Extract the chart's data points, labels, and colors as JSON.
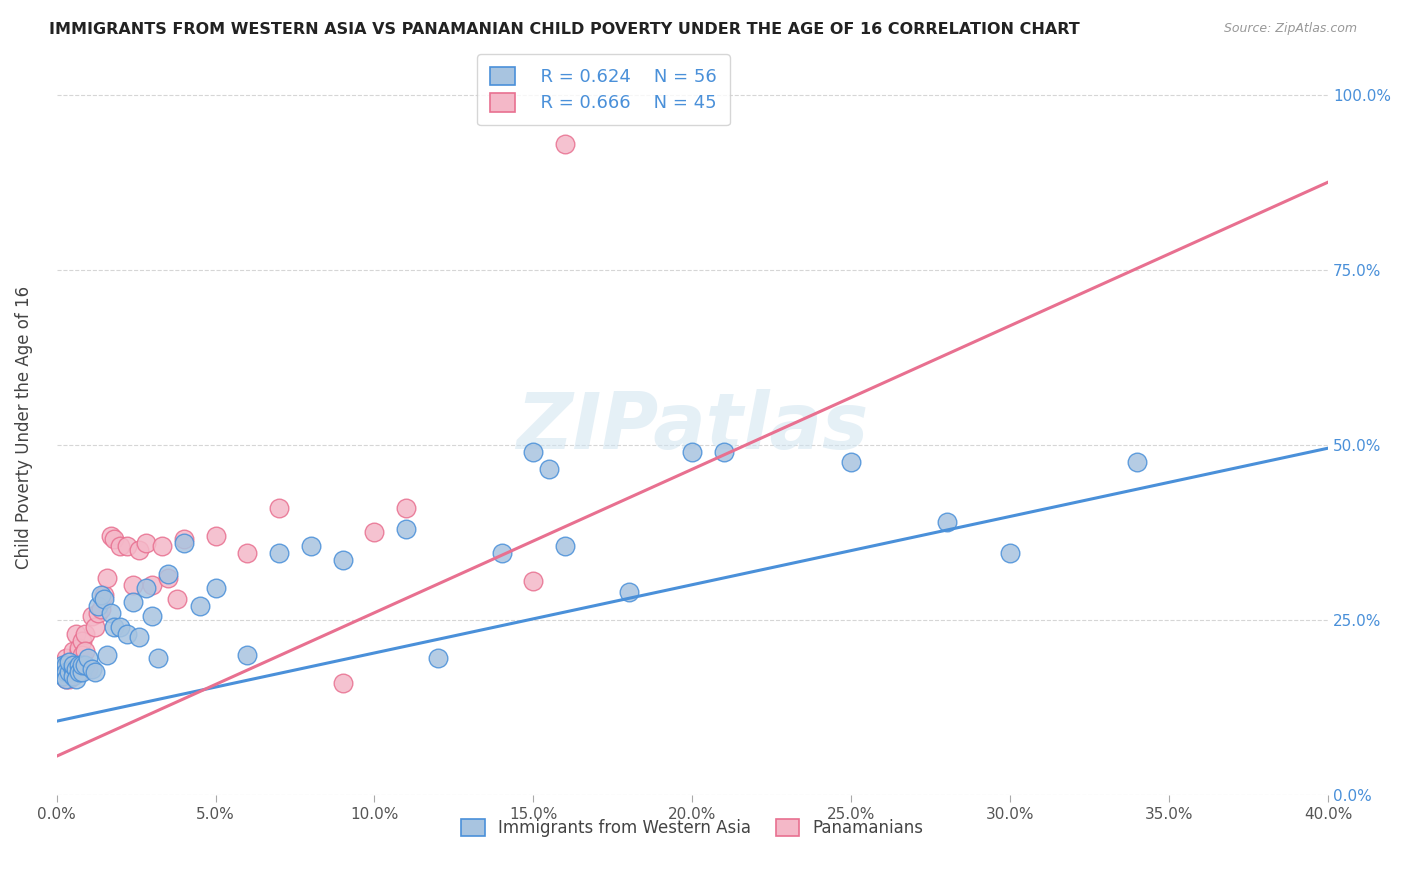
{
  "title": "IMMIGRANTS FROM WESTERN ASIA VS PANAMANIAN CHILD POVERTY UNDER THE AGE OF 16 CORRELATION CHART",
  "source": "Source: ZipAtlas.com",
  "ylabel": "Child Poverty Under the Age of 16",
  "legend_label_blue": "Immigrants from Western Asia",
  "legend_label_pink": "Panamanians",
  "legend_r_blue": "R = 0.624",
  "legend_n_blue": "N = 56",
  "legend_r_pink": "R = 0.666",
  "legend_n_pink": "N = 45",
  "xlim": [
    0.0,
    0.4
  ],
  "ylim": [
    0.0,
    1.05
  ],
  "xticks": [
    0.0,
    0.05,
    0.1,
    0.15,
    0.2,
    0.25,
    0.3,
    0.35,
    0.4
  ],
  "yticks": [
    0.0,
    0.25,
    0.5,
    0.75,
    1.0
  ],
  "color_blue": "#a8c4e0",
  "color_blue_line": "#4a90d9",
  "color_pink": "#f4b8c8",
  "color_pink_line": "#e87090",
  "watermark": "ZIPatlas",
  "blue_scatter_x": [
    0.001,
    0.001,
    0.002,
    0.002,
    0.003,
    0.003,
    0.003,
    0.004,
    0.004,
    0.005,
    0.005,
    0.005,
    0.006,
    0.006,
    0.007,
    0.007,
    0.008,
    0.008,
    0.009,
    0.01,
    0.011,
    0.012,
    0.013,
    0.014,
    0.015,
    0.016,
    0.017,
    0.018,
    0.02,
    0.022,
    0.024,
    0.026,
    0.028,
    0.03,
    0.032,
    0.035,
    0.04,
    0.045,
    0.05,
    0.06,
    0.07,
    0.08,
    0.09,
    0.11,
    0.12,
    0.14,
    0.15,
    0.155,
    0.16,
    0.18,
    0.2,
    0.21,
    0.25,
    0.28,
    0.3,
    0.34
  ],
  "blue_scatter_y": [
    0.18,
    0.175,
    0.185,
    0.17,
    0.185,
    0.175,
    0.165,
    0.175,
    0.19,
    0.18,
    0.17,
    0.185,
    0.18,
    0.165,
    0.185,
    0.175,
    0.175,
    0.185,
    0.185,
    0.195,
    0.18,
    0.175,
    0.27,
    0.285,
    0.28,
    0.2,
    0.26,
    0.24,
    0.24,
    0.23,
    0.275,
    0.225,
    0.295,
    0.255,
    0.195,
    0.315,
    0.36,
    0.27,
    0.295,
    0.2,
    0.345,
    0.355,
    0.335,
    0.38,
    0.195,
    0.345,
    0.49,
    0.465,
    0.355,
    0.29,
    0.49,
    0.49,
    0.475,
    0.39,
    0.345,
    0.475
  ],
  "pink_scatter_x": [
    0.001,
    0.001,
    0.002,
    0.002,
    0.003,
    0.003,
    0.004,
    0.004,
    0.005,
    0.005,
    0.006,
    0.006,
    0.007,
    0.007,
    0.008,
    0.008,
    0.009,
    0.009,
    0.01,
    0.011,
    0.012,
    0.013,
    0.014,
    0.015,
    0.016,
    0.017,
    0.018,
    0.02,
    0.022,
    0.024,
    0.026,
    0.028,
    0.03,
    0.033,
    0.035,
    0.038,
    0.04,
    0.05,
    0.06,
    0.07,
    0.09,
    0.1,
    0.11,
    0.15,
    0.16
  ],
  "pink_scatter_y": [
    0.185,
    0.175,
    0.18,
    0.175,
    0.195,
    0.165,
    0.19,
    0.165,
    0.205,
    0.185,
    0.23,
    0.18,
    0.205,
    0.21,
    0.22,
    0.2,
    0.23,
    0.205,
    0.18,
    0.255,
    0.24,
    0.26,
    0.265,
    0.285,
    0.31,
    0.37,
    0.365,
    0.355,
    0.355,
    0.3,
    0.35,
    0.36,
    0.3,
    0.355,
    0.31,
    0.28,
    0.365,
    0.37,
    0.345,
    0.41,
    0.16,
    0.375,
    0.41,
    0.305,
    0.93
  ],
  "blue_line_x": [
    0.0,
    0.4
  ],
  "blue_line_y": [
    0.105,
    0.495
  ],
  "pink_line_x": [
    0.0,
    0.4
  ],
  "pink_line_y": [
    0.055,
    0.875
  ]
}
